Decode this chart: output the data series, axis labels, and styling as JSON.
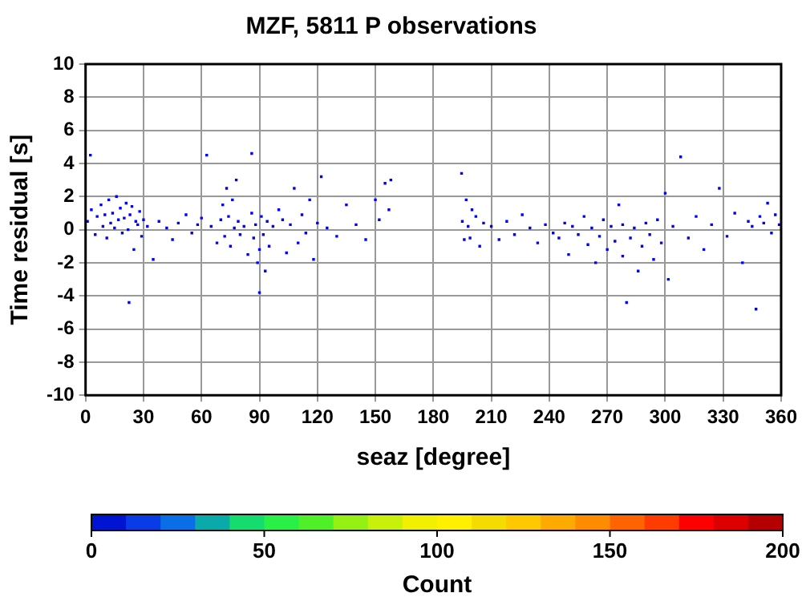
{
  "chart_data": {
    "type": "scatter",
    "title": "MZF, 5811 P observations",
    "xlabel": "seaz [degree]",
    "ylabel": "Time residual [s]",
    "clabel": "Count",
    "xlim": [
      0,
      360
    ],
    "xticks": [
      0,
      30,
      60,
      90,
      120,
      150,
      180,
      210,
      240,
      270,
      300,
      330,
      360
    ],
    "ylim": [
      -10,
      10
    ],
    "yticks": [
      -10,
      -8,
      -6,
      -4,
      -2,
      0,
      2,
      4,
      6,
      8,
      10
    ],
    "clim": [
      0,
      200
    ],
    "cticks": [
      0,
      50,
      100,
      150,
      200
    ],
    "grid": true,
    "marker": "square",
    "series": [
      {
        "x": [
          2.5,
          1,
          3,
          5,
          6,
          8,
          9,
          10,
          11,
          12,
          13,
          14,
          15,
          16,
          17,
          18,
          19,
          20,
          21,
          22,
          22.5,
          23,
          24,
          25,
          26,
          27,
          28,
          29,
          30,
          32,
          35,
          38,
          42,
          45,
          48,
          52,
          55,
          58,
          60,
          62.7,
          65,
          68,
          70,
          71,
          72,
          73,
          74,
          75,
          76,
          77,
          78,
          79,
          80,
          82,
          84,
          86,
          86,
          87,
          88,
          89,
          90,
          90,
          91,
          92,
          93,
          94,
          95,
          97,
          100,
          102,
          104,
          106,
          108,
          110,
          112,
          114,
          116,
          118,
          120,
          122,
          125,
          130,
          135,
          140,
          145,
          150,
          152,
          155,
          157,
          158,
          194.6,
          195,
          196,
          197,
          198,
          199,
          200,
          202,
          204,
          206,
          210,
          214,
          218,
          222,
          226,
          230,
          234,
          238,
          242,
          245,
          248,
          250,
          252,
          255,
          258,
          260,
          262,
          264,
          266,
          268,
          270,
          272,
          274,
          276,
          278,
          278,
          280,
          282,
          284,
          286,
          288,
          290,
          292,
          294,
          296,
          298,
          300,
          301.6,
          304,
          308,
          312,
          316,
          320,
          324,
          328,
          332,
          336,
          340,
          343,
          345,
          347,
          349,
          351,
          353,
          355,
          357,
          359
        ],
        "values": [
          4.5,
          0.5,
          1.2,
          -0.3,
          0.8,
          1.5,
          0.2,
          0.9,
          -0.5,
          1.8,
          0.4,
          1,
          0.1,
          2,
          0.6,
          1.3,
          -0.2,
          0.7,
          1.6,
          0,
          -4.4,
          0.9,
          1.4,
          -1.2,
          0.5,
          0.3,
          1.1,
          -0.4,
          0.6,
          0.2,
          -1.8,
          0.5,
          0.1,
          -0.6,
          0.4,
          0.9,
          -0.2,
          0.3,
          0.7,
          4.5,
          0.2,
          -0.8,
          0.6,
          1.5,
          -0.4,
          2.5,
          0.8,
          -1,
          1.8,
          0.1,
          3,
          0.5,
          -0.3,
          0.2,
          -1.5,
          1,
          4.6,
          -0.5,
          0.3,
          -2,
          -3.8,
          -1.2,
          0.8,
          -0.3,
          -2.5,
          0.5,
          -1,
          0.2,
          1.2,
          0.6,
          -1.4,
          0.3,
          2.5,
          -0.8,
          0.9,
          -0.2,
          1.8,
          -1.8,
          0.4,
          3.2,
          0.1,
          -0.4,
          1.5,
          0.3,
          -0.6,
          1.8,
          0.6,
          2.8,
          1.2,
          3,
          3.4,
          0.5,
          -0.6,
          1.8,
          0.2,
          -0.5,
          1.2,
          0.8,
          -1,
          0.4,
          0.2,
          -0.6,
          0.5,
          -0.3,
          0.9,
          0.1,
          -0.8,
          0.3,
          -0.2,
          -0.5,
          0.4,
          -1.5,
          0.2,
          -0.3,
          0.8,
          -0.9,
          0.1,
          -2,
          -0.4,
          0.6,
          -1.2,
          0.2,
          -0.7,
          1.5,
          -1.6,
          0.3,
          -4.4,
          -0.5,
          0.1,
          -2.5,
          -1,
          0.4,
          -0.3,
          -1.8,
          0.6,
          -0.8,
          2.2,
          -3,
          0.2,
          4.4,
          -0.5,
          0.8,
          -1.2,
          0.3,
          2.5,
          -0.4,
          1,
          -2,
          0.5,
          0.2,
          -4.8,
          0.8,
          0.4,
          1.6,
          -0.2,
          0.9,
          0.3
        ],
        "color": "#0000ff"
      }
    ]
  }
}
